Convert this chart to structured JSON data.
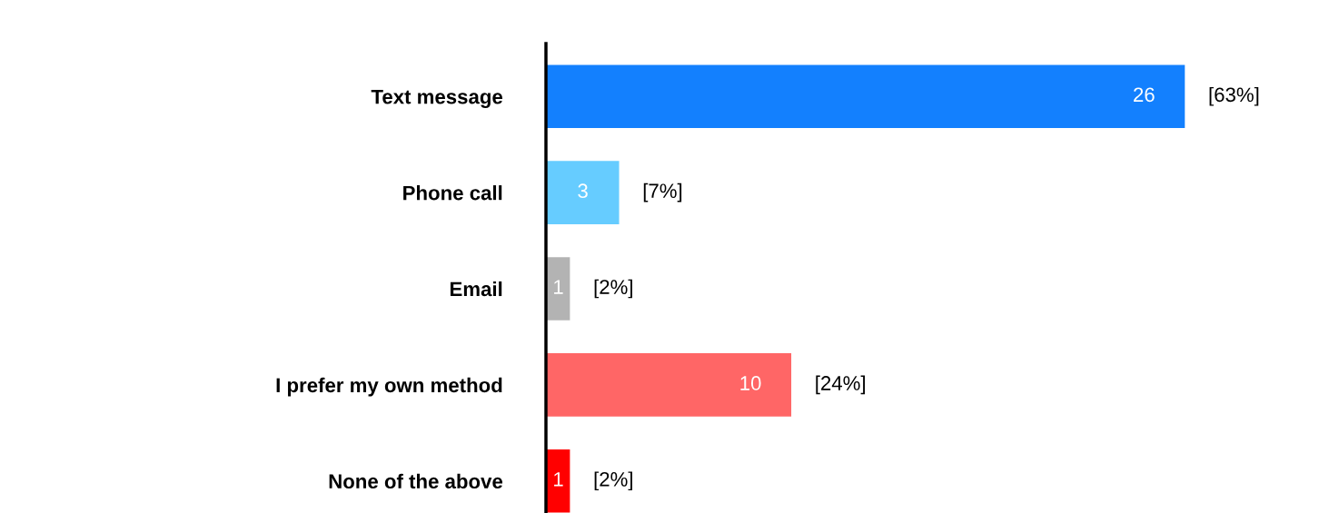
{
  "chart_data": {
    "type": "bar",
    "orientation": "horizontal",
    "categories": [
      "Text message",
      "Phone call",
      "Email",
      "I prefer my own method",
      "None of the above"
    ],
    "values": [
      26,
      3,
      1,
      10,
      1
    ],
    "colors": [
      "#1380fe",
      "#66ccff",
      "#b3b3b3",
      "#ff6666",
      "#ff0000"
    ],
    "data_labels": true,
    "annotations": [
      {
        "text": "[63%]",
        "x": 26,
        "y": "Text message"
      },
      {
        "text": "[7%]",
        "x": 3,
        "y": "Phone call"
      },
      {
        "text": "[2%]",
        "x": 1,
        "y": "Email"
      },
      {
        "text": "[24%]",
        "x": 10,
        "y": "I prefer my own method"
      },
      {
        "text": "[2%]",
        "x": 1,
        "y": "None of the above"
      }
    ],
    "grid": false,
    "legend": false
  }
}
